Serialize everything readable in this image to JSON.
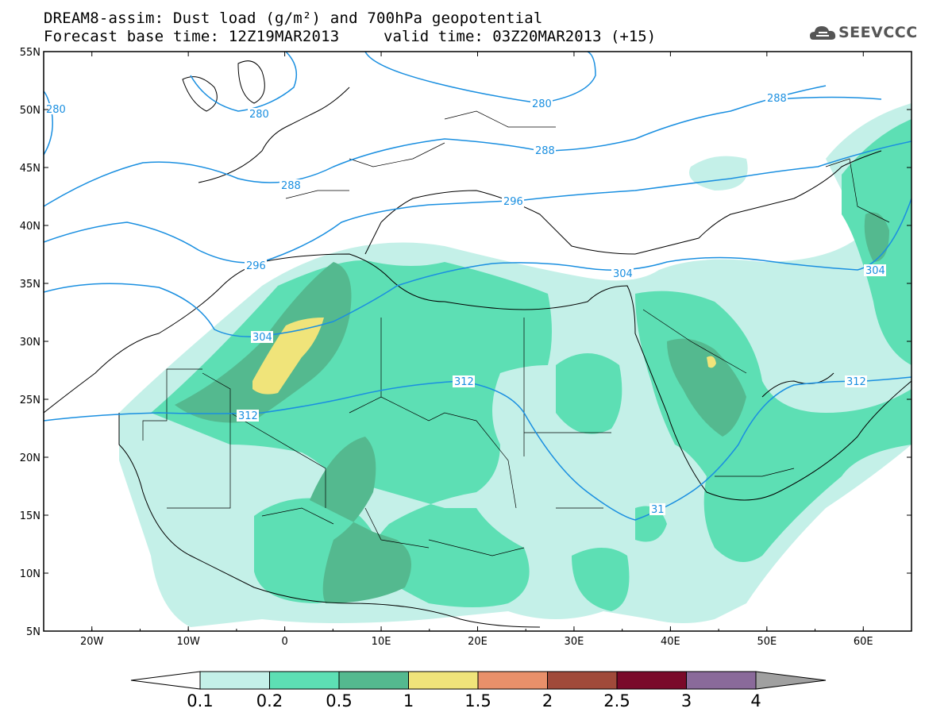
{
  "title": {
    "line1": "DREAM8-assim: Dust load (g/m²) and 700hPa geopotential",
    "line2": "Forecast base time: 12Z19MAR2013",
    "valid": "valid time: 03Z20MAR2013 (+15)"
  },
  "logo": {
    "text": "SEEVCCC",
    "icon": "cloud-icon"
  },
  "map": {
    "lon_range": [
      -25,
      65
    ],
    "lat_range": [
      5,
      55
    ],
    "lat_ticks": [
      "55N",
      "50N",
      "45N",
      "40N",
      "35N",
      "30N",
      "25N",
      "20N",
      "15N",
      "10N",
      "5N"
    ],
    "lon_ticks": [
      "20W",
      "10W",
      "0",
      "10E",
      "20E",
      "30E",
      "40E",
      "50E",
      "60E"
    ],
    "contour_color": "#1a8fe0",
    "contour_labels": [
      "280",
      "280",
      "280",
      "288",
      "288",
      "288",
      "296",
      "296",
      "304",
      "304",
      "312",
      "312",
      "312",
      "304",
      "31"
    ]
  },
  "colorbar": {
    "labels": [
      "0.1",
      "0.2",
      "0.5",
      "1",
      "1.5",
      "2",
      "2.5",
      "3",
      "4"
    ],
    "colors": [
      "#c4f0e8",
      "#5ddfb4",
      "#54b98f",
      "#f0e47a",
      "#e8906a",
      "#a04a3a",
      "#7a0a2a",
      "#8a6a9a",
      "#a0a0a0"
    ]
  }
}
